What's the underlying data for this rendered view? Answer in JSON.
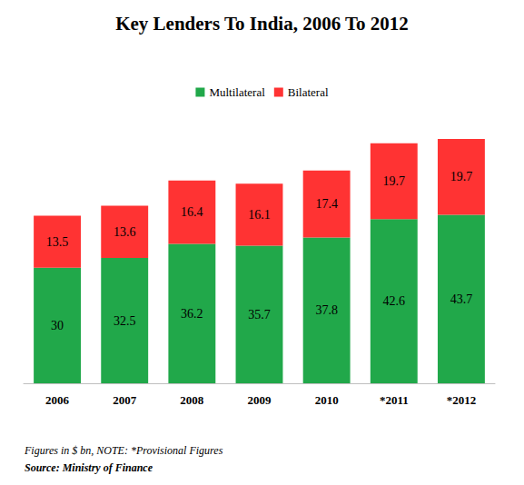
{
  "chart_data": {
    "type": "bar",
    "title": "Key Lenders To India, 2006 To 2012",
    "categories": [
      "2006",
      "2007",
      "2008",
      "2009",
      "2010",
      "*2011",
      "*2012"
    ],
    "series": [
      {
        "name": "Multilateral",
        "color": "#21a84a",
        "values": [
          30,
          32.5,
          36.2,
          35.7,
          37.8,
          42.6,
          43.7
        ]
      },
      {
        "name": "Bilateral",
        "color": "#ff3333",
        "values": [
          13.5,
          13.6,
          16.4,
          16.1,
          17.4,
          19.7,
          19.7
        ]
      }
    ],
    "totals": [
      43.5,
      46.1,
      52.6,
      51.8,
      55.2,
      62.3,
      63.4
    ],
    "stacked": true,
    "data_labels": true,
    "legend": "top",
    "grid": false,
    "tick_labels": "x",
    "ylim": [
      0,
      70
    ],
    "note": "Figures in $ bn, NOTE: *Provisional Figures",
    "source": "Source: Ministry of Finance"
  }
}
